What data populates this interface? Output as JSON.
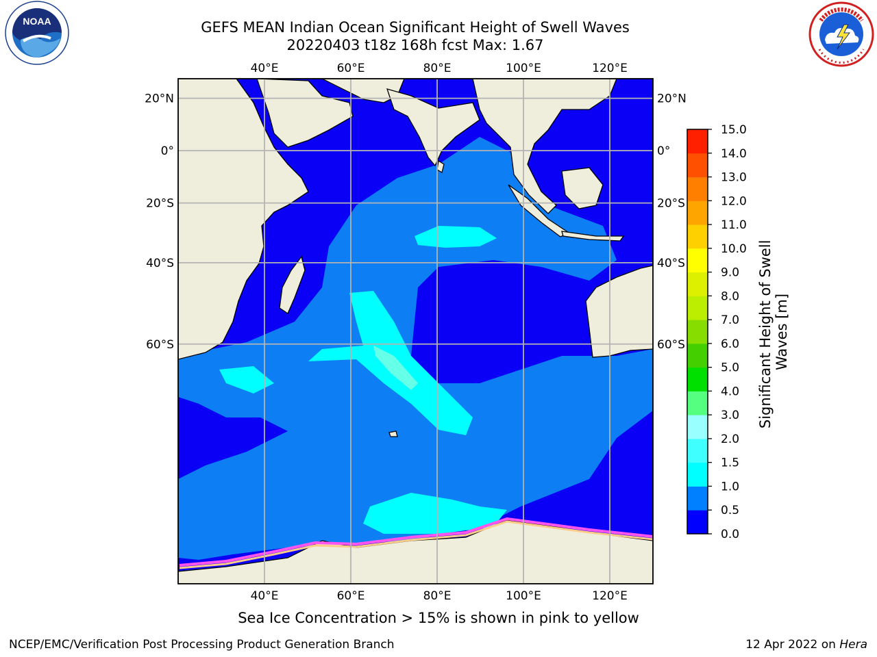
{
  "header": {
    "title_line1": "GEFS MEAN Indian Ocean Significant Height of Swell Waves",
    "title_line2": "20220403 t18z 168h fcst   Max: 1.67"
  },
  "logos": {
    "noaa": {
      "text": "NOAA",
      "icon": "noaa-logo-icon"
    },
    "nws": {
      "icon": "nws-logo-icon"
    }
  },
  "map": {
    "lon_labels": [
      "40°E",
      "60°E",
      "80°E",
      "100°E",
      "120°E"
    ],
    "lat_labels": [
      "20°N",
      "0°",
      "20°S",
      "40°S",
      "60°S"
    ],
    "lon_range": [
      20,
      130
    ],
    "lat_range": [
      -84,
      27
    ],
    "ocean_color": "#0a00f5",
    "land_color": "#efeedc",
    "grid_color": "#b4b4b4"
  },
  "colorbar": {
    "label": "Significant Height of Swell Waves [m]",
    "label_line1": "Significant Height of Swell",
    "label_line2": "Waves [m]",
    "ticks": [
      "0.0",
      "0.5",
      "1.0",
      "1.5",
      "2.0",
      "3.0",
      "4.0",
      "5.0",
      "6.0",
      "7.0",
      "8.0",
      "9.0",
      "10.0",
      "11.0",
      "12.0",
      "13.0",
      "14.0",
      "15.0"
    ],
    "colors": [
      "#0000ff",
      "#007fff",
      "#00ffff",
      "#40ffff",
      "#99ffff",
      "#55ff80",
      "#00e000",
      "#44d000",
      "#88dd00",
      "#bbee00",
      "#ddf000",
      "#ffff00",
      "#ffd000",
      "#ffa500",
      "#ff7f00",
      "#ff5000",
      "#ff2000",
      "#ff0000"
    ]
  },
  "caption": "Sea Ice Concentration > 15% is shown in pink to yellow",
  "footer": {
    "left": "NCEP/EMC/Verification Post Processing Product Generation Branch",
    "right_date": "12 Apr 2022 on ",
    "right_host": "Hera"
  }
}
